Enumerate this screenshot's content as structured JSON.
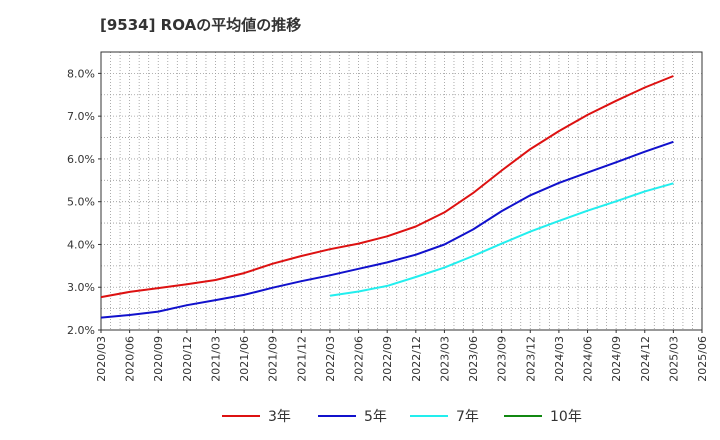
{
  "chart_data": {
    "type": "line",
    "title": "[9534]  ROAの平均値の推移",
    "x": [
      "2020/03",
      "2020/06",
      "2020/09",
      "2020/12",
      "2021/03",
      "2021/06",
      "2021/09",
      "2021/12",
      "2022/03",
      "2022/06",
      "2022/09",
      "2022/12",
      "2023/03",
      "2023/06",
      "2023/09",
      "2023/12",
      "2024/03",
      "2024/06",
      "2024/09",
      "2024/12",
      "2025/03",
      "2025/06"
    ],
    "y_ticks": [
      "2.0%",
      "3.0%",
      "4.0%",
      "5.0%",
      "6.0%",
      "7.0%",
      "8.0%"
    ],
    "ylim": [
      2.0,
      8.5
    ],
    "grid": true,
    "legend_position": "bottom",
    "series": [
      {
        "name": "3年",
        "color": "#dd1111",
        "values": [
          2.77,
          2.89,
          2.98,
          3.07,
          3.17,
          3.33,
          3.55,
          3.73,
          3.89,
          4.02,
          4.19,
          4.42,
          4.75,
          5.2,
          5.73,
          6.23,
          6.65,
          7.03,
          7.36,
          7.67,
          7.94,
          null
        ]
      },
      {
        "name": "5年",
        "color": "#1111cc",
        "values": [
          2.29,
          2.35,
          2.43,
          2.58,
          2.7,
          2.82,
          2.99,
          3.14,
          3.28,
          3.43,
          3.58,
          3.76,
          4.0,
          4.35,
          4.78,
          5.15,
          5.44,
          5.68,
          5.92,
          6.17,
          6.4,
          null
        ]
      },
      {
        "name": "7年",
        "color": "#22eeee",
        "values": [
          null,
          null,
          null,
          null,
          null,
          null,
          null,
          null,
          2.8,
          2.9,
          3.03,
          3.24,
          3.46,
          3.73,
          4.02,
          4.3,
          4.55,
          4.79,
          5.01,
          5.24,
          5.43,
          null
        ]
      },
      {
        "name": "10年",
        "color": "#118811",
        "values": [
          null,
          null,
          null,
          null,
          null,
          null,
          null,
          null,
          null,
          null,
          null,
          null,
          null,
          null,
          null,
          null,
          null,
          null,
          null,
          null,
          null,
          null
        ]
      }
    ]
  }
}
